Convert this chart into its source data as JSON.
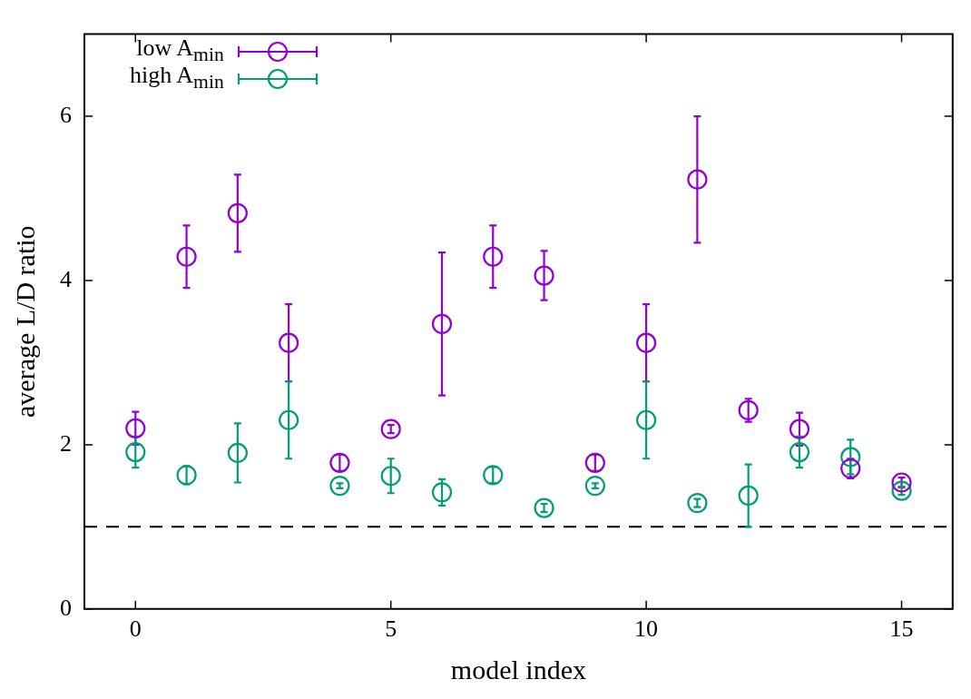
{
  "chart_data": {
    "type": "scatter",
    "xlabel": "model index",
    "ylabel": "average L/D ratio",
    "x": [
      0,
      1,
      2,
      3,
      4,
      5,
      6,
      7,
      8,
      9,
      10,
      11,
      12,
      13,
      14,
      15
    ],
    "xlim": [
      -1,
      16
    ],
    "xticks": [
      0,
      5,
      10,
      15
    ],
    "ylim": [
      0,
      7
    ],
    "yticks": [
      0,
      2,
      4,
      6
    ],
    "marker": "circle",
    "legend": "top left",
    "grid": false,
    "series": [
      {
        "name": "low A$_{min}$",
        "color": "#9400d3",
        "values": [
          2.2,
          4.29,
          4.82,
          3.24,
          1.78,
          2.19,
          3.47,
          4.29,
          4.06,
          1.78,
          3.24,
          5.23,
          2.42,
          2.19,
          1.71,
          1.54
        ],
        "errors": [
          0.2,
          0.38,
          0.47,
          0.47,
          0.1,
          0.05,
          0.87,
          0.38,
          0.3,
          0.1,
          0.47,
          0.77,
          0.14,
          0.2,
          0.12,
          0.06
        ]
      },
      {
        "name": "high A$_{min}$",
        "color": "#009e73",
        "values": [
          1.91,
          1.63,
          1.9,
          2.3,
          1.5,
          1.62,
          1.42,
          1.63,
          1.23,
          1.5,
          2.3,
          1.29,
          1.38,
          1.91,
          1.85,
          1.44
        ],
        "errors": [
          0.19,
          0.11,
          0.36,
          0.47,
          0.03,
          0.21,
          0.16,
          0.1,
          0.05,
          0.03,
          0.47,
          0.05,
          0.38,
          0.19,
          0.21,
          0.05
        ]
      }
    ],
    "ref_lines": [
      {
        "axis": "y",
        "value": 1,
        "color": "#000000",
        "line_style": "dashed"
      }
    ]
  }
}
